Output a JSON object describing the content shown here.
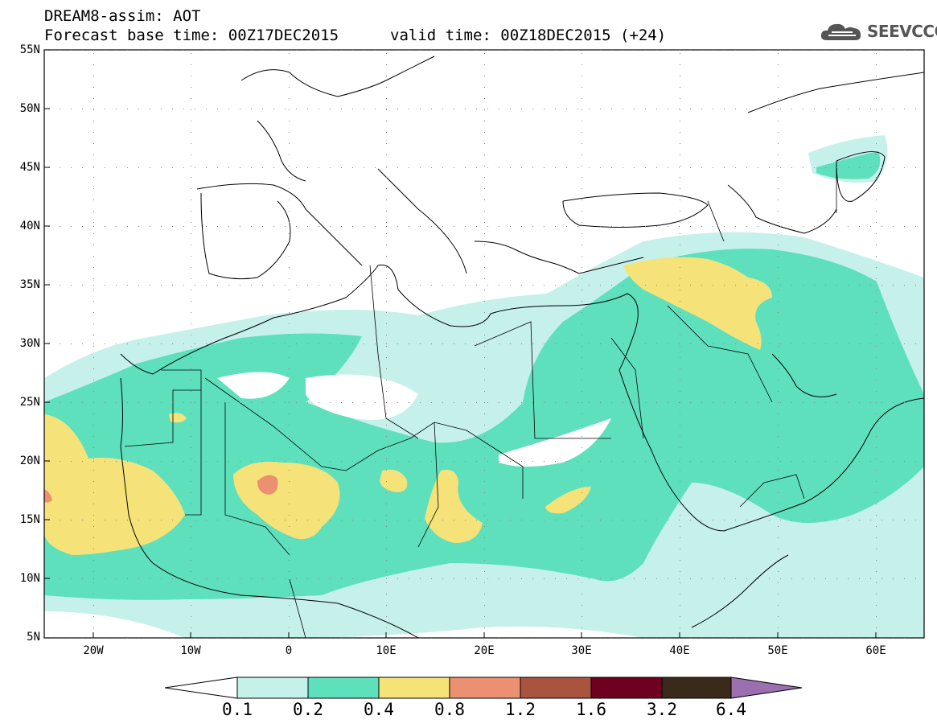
{
  "header": {
    "line1": "DREAM8-assim: AOT",
    "base_time": "Forecast base time: 00Z17DEC2015",
    "valid_time": "valid time: 00Z18DEC2015 (+24)"
  },
  "logo": {
    "text": "SEEVCCC",
    "icon": "cloud-icon"
  },
  "map": {
    "lat_labels": [
      "55N",
      "50N",
      "45N",
      "40N",
      "35N",
      "30N",
      "25N",
      "20N",
      "15N",
      "10N",
      "5N"
    ],
    "lon_labels": [
      "20W",
      "10W",
      "0",
      "10E",
      "20E",
      "30E",
      "40E",
      "50E",
      "60E"
    ]
  },
  "colorbar": {
    "labels": [
      "0.1",
      "0.2",
      "0.4",
      "0.8",
      "1.2",
      "1.6",
      "3.2",
      "6.4"
    ],
    "colors": [
      "#c6f0ea",
      "#5fe0bd",
      "#f5e37a",
      "#eb9070",
      "#a8543f",
      "#6e0020",
      "#3a2a1a",
      "#9b6fb0"
    ]
  }
}
